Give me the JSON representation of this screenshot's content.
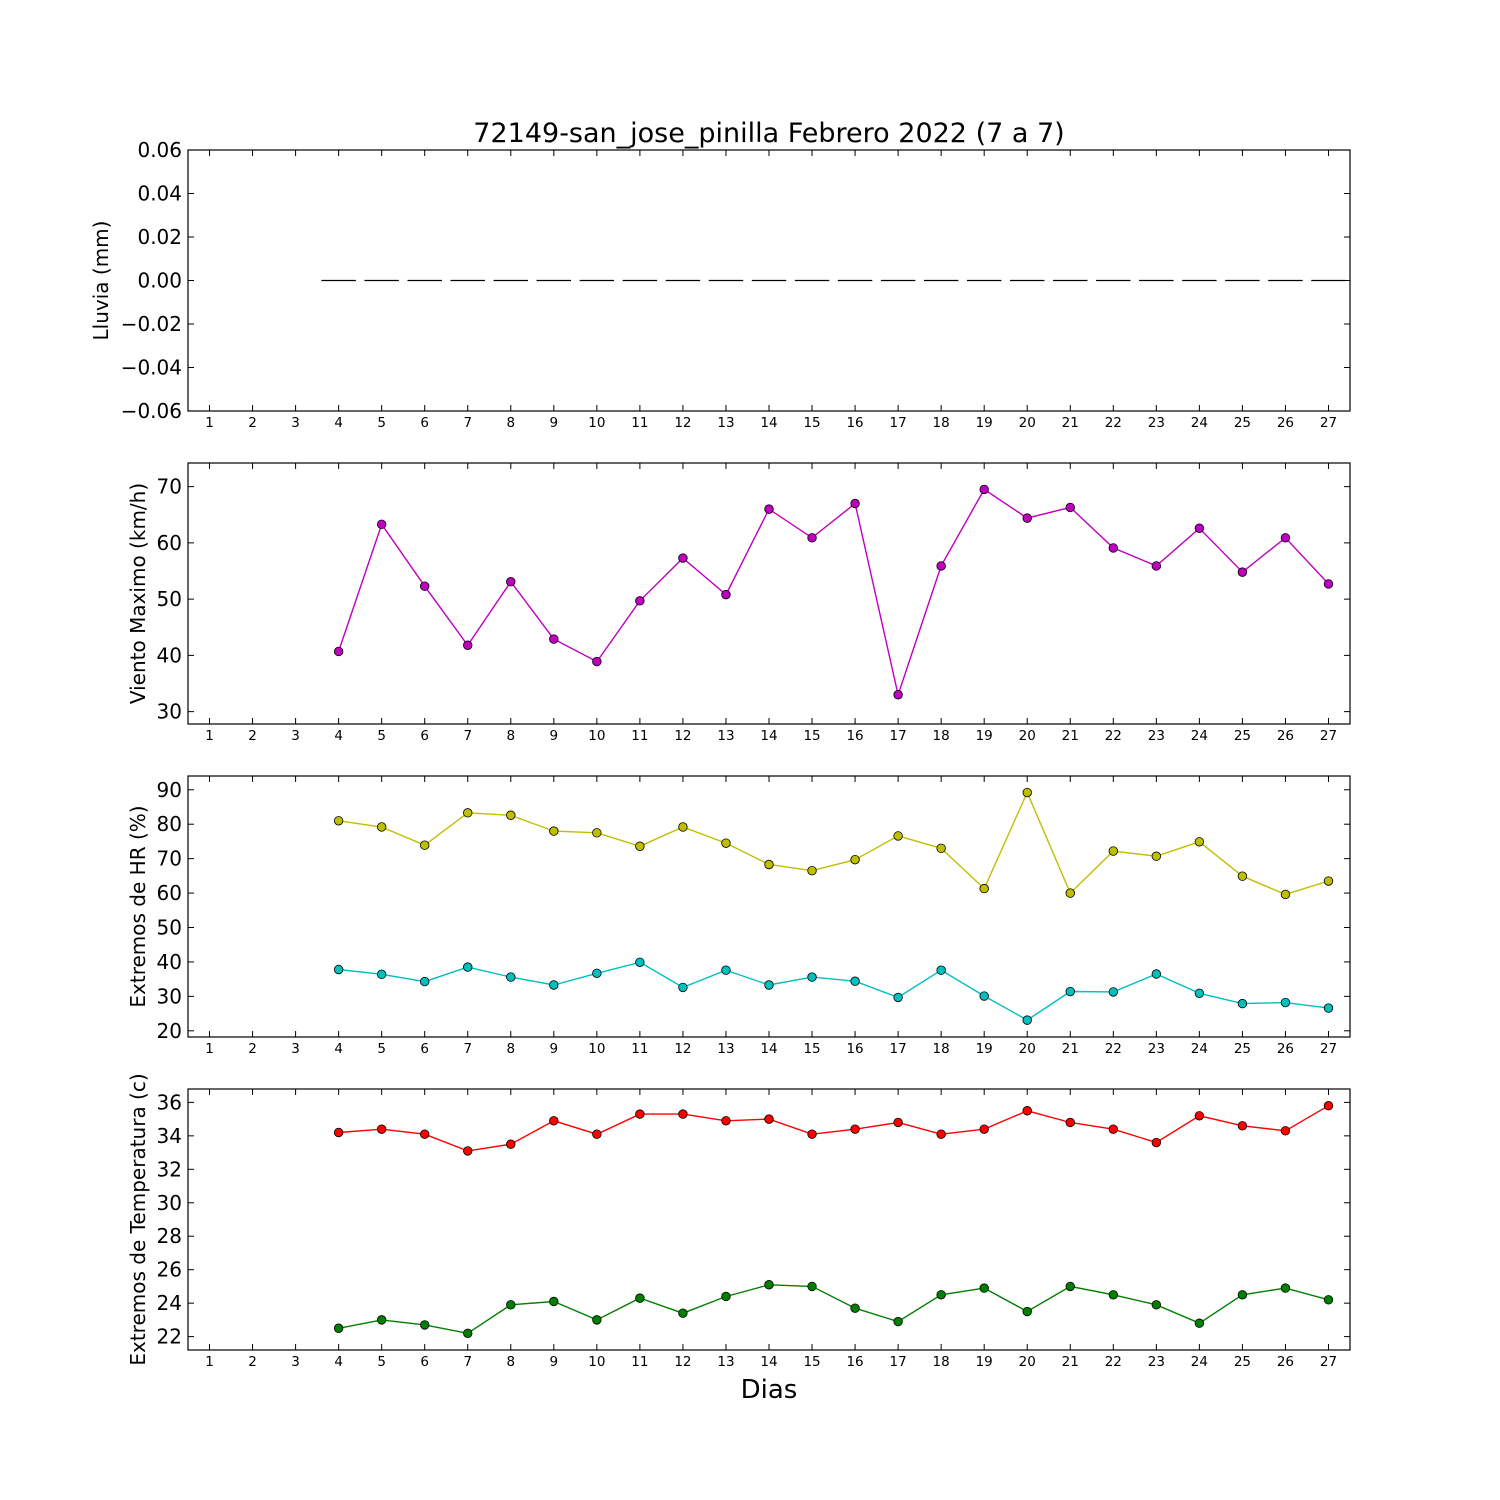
{
  "chart_data": {
    "title": "72149-san_jose_pinilla Febrero 2022  (7 a 7)",
    "xlabel": "Dias",
    "x": [
      1,
      2,
      3,
      4,
      5,
      6,
      7,
      8,
      9,
      10,
      11,
      12,
      13,
      14,
      15,
      16,
      17,
      18,
      19,
      20,
      21,
      22,
      23,
      24,
      25,
      26,
      27
    ],
    "x_tick_labels": [
      "1",
      "2",
      "3",
      "4",
      "5",
      "6",
      "7",
      "8",
      "9",
      "10",
      "11",
      "12",
      "13",
      "14",
      "15",
      "16",
      "17",
      "18",
      "19",
      "20",
      "21",
      "22",
      "23",
      "24",
      "25",
      "26",
      "27"
    ],
    "xlim": [
      0.5,
      27.5
    ],
    "panels": [
      {
        "type": "bar",
        "ylabel": "Lluvia (mm)",
        "ylim": [
          -0.06,
          0.06
        ],
        "y_ticks": [
          0.06,
          0.04,
          0.02,
          0.0,
          -0.02,
          -0.04,
          -0.06
        ],
        "y_tick_labels": [
          "0.06",
          "0.04",
          "0.02",
          "0.00",
          "−0.02",
          "−0.04",
          "−0.06"
        ],
        "series": [
          {
            "color": "#000000",
            "x": [
              4,
              5,
              6,
              7,
              8,
              9,
              10,
              11,
              12,
              13,
              14,
              15,
              16,
              17,
              18,
              19,
              20,
              21,
              22,
              23,
              24,
              25,
              26,
              27
            ],
            "values": [
              0,
              0,
              0,
              0,
              0,
              0,
              0,
              0,
              0,
              0,
              0,
              0,
              0,
              0,
              0,
              0,
              0,
              0,
              0,
              0,
              0,
              0,
              0,
              0
            ]
          }
        ]
      },
      {
        "type": "line",
        "ylabel": "Viento Maximo (km/h)",
        "ylim": [
          27.8,
          74.2
        ],
        "y_ticks": [
          30,
          40,
          50,
          60,
          70
        ],
        "y_tick_labels": [
          "30",
          "40",
          "50",
          "60",
          "70"
        ],
        "series": [
          {
            "color": "#bf00bf",
            "x": [
              4,
              5,
              6,
              7,
              8,
              9,
              10,
              11,
              12,
              13,
              14,
              15,
              16,
              17,
              18,
              19,
              20,
              21,
              22,
              23,
              24,
              25,
              26,
              27
            ],
            "values": [
              40.7,
              63.3,
              52.3,
              41.8,
              53.1,
              42.9,
              38.9,
              49.7,
              57.3,
              50.8,
              66.0,
              60.9,
              67.0,
              33.0,
              55.9,
              69.5,
              64.4,
              66.3,
              59.1,
              55.9,
              62.6,
              54.8,
              60.9,
              52.7
            ]
          }
        ]
      },
      {
        "type": "line",
        "ylabel": "Extremos de HR (%)",
        "ylim": [
          18.2,
          94.0
        ],
        "y_ticks": [
          20,
          30,
          40,
          50,
          60,
          70,
          80,
          90
        ],
        "y_tick_labels": [
          "20",
          "30",
          "40",
          "50",
          "60",
          "70",
          "80",
          "90"
        ],
        "series": [
          {
            "color": "#bfbf00",
            "x": [
              4,
              5,
              6,
              7,
              8,
              9,
              10,
              11,
              12,
              13,
              14,
              15,
              16,
              17,
              18,
              19,
              20,
              21,
              22,
              23,
              24,
              25,
              26,
              27
            ],
            "values": [
              81.0,
              79.2,
              73.9,
              83.3,
              82.6,
              78.0,
              77.5,
              73.6,
              79.2,
              74.5,
              68.3,
              66.5,
              69.7,
              76.6,
              73.0,
              61.3,
              89.2,
              60.0,
              72.2,
              70.7,
              74.9,
              64.9,
              59.6,
              63.5
            ]
          },
          {
            "color": "#00bfbf",
            "x": [
              4,
              5,
              6,
              7,
              8,
              9,
              10,
              11,
              12,
              13,
              14,
              15,
              16,
              17,
              18,
              19,
              20,
              21,
              22,
              23,
              24,
              25,
              26,
              27
            ],
            "values": [
              37.8,
              36.4,
              34.3,
              38.5,
              35.6,
              33.3,
              36.7,
              39.9,
              32.6,
              37.6,
              33.3,
              35.6,
              34.4,
              29.7,
              37.6,
              30.1,
              23.1,
              31.4,
              31.3,
              36.5,
              30.9,
              27.9,
              28.2,
              26.6
            ]
          }
        ]
      },
      {
        "type": "line",
        "ylabel": "Extremos de Temperatura (c)",
        "ylim": [
          21.2,
          36.8
        ],
        "y_ticks": [
          22,
          24,
          26,
          28,
          30,
          32,
          34,
          36
        ],
        "y_tick_labels": [
          "22",
          "24",
          "26",
          "28",
          "30",
          "32",
          "34",
          "36"
        ],
        "series": [
          {
            "color": "#ff0000",
            "x": [
              4,
              5,
              6,
              7,
              8,
              9,
              10,
              11,
              12,
              13,
              14,
              15,
              16,
              17,
              18,
              19,
              20,
              21,
              22,
              23,
              24,
              25,
              26,
              27
            ],
            "values": [
              34.2,
              34.4,
              34.1,
              33.1,
              33.5,
              34.9,
              34.1,
              35.3,
              35.3,
              34.9,
              35.0,
              34.1,
              34.4,
              34.8,
              34.1,
              34.4,
              35.5,
              34.8,
              34.4,
              33.6,
              35.2,
              34.6,
              34.3,
              35.8
            ]
          },
          {
            "color": "#008000",
            "x": [
              4,
              5,
              6,
              7,
              8,
              9,
              10,
              11,
              12,
              13,
              14,
              15,
              16,
              17,
              18,
              19,
              20,
              21,
              22,
              23,
              24,
              25,
              26,
              27
            ],
            "values": [
              22.5,
              23.0,
              22.7,
              22.2,
              23.9,
              24.1,
              23.0,
              24.3,
              23.4,
              24.4,
              25.1,
              25.0,
              23.7,
              22.9,
              24.5,
              24.9,
              23.5,
              25.0,
              24.5,
              23.9,
              22.8,
              24.5,
              24.9,
              24.2
            ]
          }
        ]
      }
    ]
  }
}
